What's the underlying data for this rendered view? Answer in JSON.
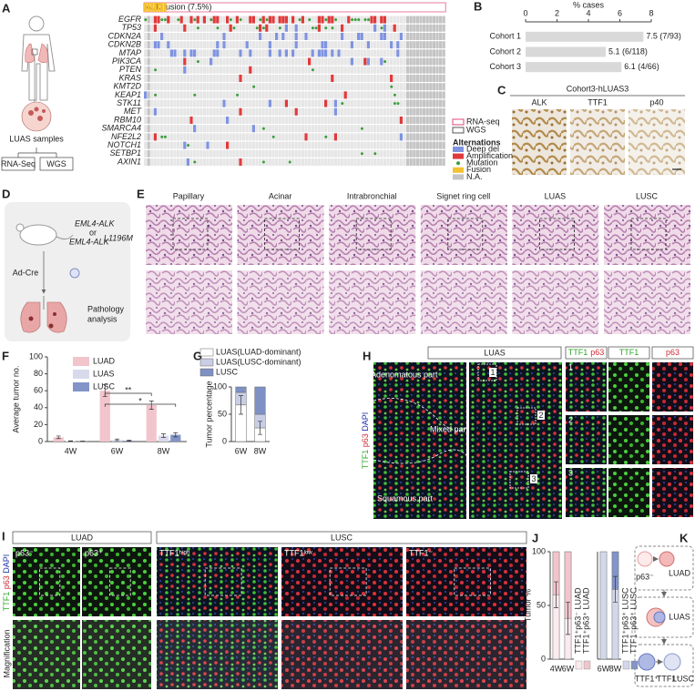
{
  "panel_labels": [
    "A",
    "B",
    "C",
    "D",
    "E",
    "F",
    "G",
    "H",
    "I",
    "J",
    "K"
  ],
  "panel_a": {
    "fusion_label": "ALK fusion (7.5%)",
    "genes": [
      "EGFR",
      "TP53",
      "CDKN2A",
      "CDKN2B",
      "MTAP",
      "PIK3CA",
      "PTEN",
      "KRAS",
      "KMT2D",
      "KEAP1",
      "STK11",
      "MET",
      "RBM10",
      "SMARCA4",
      "NFE2L2",
      "NOTCH1",
      "SETBP1",
      "AXIN1"
    ],
    "samples_label": "LUAS samples",
    "assays": [
      "RNA-Seq",
      "WGS"
    ],
    "data_legend": [
      {
        "name": "RNA-seq",
        "color": "#e0457b"
      },
      {
        "name": "WGS",
        "color": "#555555"
      }
    ],
    "legend_title": "Alternations",
    "legend_items": [
      {
        "name": "Deep del",
        "color": "#7f93e0"
      },
      {
        "name": "Amplification",
        "color": "#e0393b"
      },
      {
        "name": "Mutation",
        "color": "#3c9e3c"
      },
      {
        "name": "Fusion",
        "color": "#f4c132"
      },
      {
        "name": "N.A.",
        "color": "#c4c4c4"
      }
    ]
  },
  "panel_c": {
    "title": "Cohort3-hLUAS3",
    "stains": [
      "ALK",
      "TTF1",
      "p40"
    ]
  },
  "panel_d": {
    "model_a": "EML4-ALK",
    "or": "or",
    "model_b": "EML4-ALK",
    "model_b_sup": "L1196M",
    "virus": "Ad-Cre",
    "readout": [
      "Pathology",
      "analysis"
    ]
  },
  "panel_e": {
    "columns": [
      "Papillary",
      "Acinar",
      "Intrabronchial",
      "Signet ring cell",
      "LUAS",
      "LUSC"
    ]
  },
  "panel_h": {
    "title": "LUAS",
    "channels": [
      "TTF1",
      "p63",
      "DAPI"
    ],
    "regions": [
      "Adenomatous part",
      "Mixed part",
      "Squamous part"
    ],
    "insets": [
      "1",
      "2",
      "3"
    ],
    "inset_columns": [
      [
        "TTF1",
        "p63"
      ],
      [
        "TTF1"
      ],
      [
        "p63"
      ]
    ]
  },
  "panel_i": {
    "groups": [
      "LUAD",
      "LUSC"
    ],
    "columns": [
      "p63⁻",
      "p63⁺",
      "TTF1ʰⁱᵍʰ",
      "TTF1ˡᵒʷ",
      "TTF1⁻"
    ],
    "channels": [
      "TTF1",
      "p63",
      "DAPI"
    ],
    "row_label": "Magnification"
  },
  "panel_k": {
    "stages": [
      "LUAD",
      "LUAS",
      "LUSC"
    ],
    "cell_labels": [
      "p63⁻",
      "TTF1⁺",
      "TTF1⁻"
    ]
  },
  "chart_data": [
    {
      "type": "bar",
      "orientation": "horizontal",
      "title": "% cases",
      "categories": [
        "Cohort 1",
        "Cohort 2",
        "Cohort 3"
      ],
      "values": [
        7.5,
        5.1,
        6.1
      ],
      "value_labels": [
        "7.5 (7/93)",
        "5.1 (6/118)",
        "6.1 (4/66)"
      ],
      "color": "#d9d9d9",
      "xlim": [
        0,
        8
      ],
      "xticks": [
        0,
        2,
        4,
        6,
        8
      ]
    },
    {
      "type": "bar",
      "ylabel": "Average tumor no.",
      "categories": [
        "4W",
        "6W",
        "8W"
      ],
      "legend": "top-right",
      "series": [
        {
          "name": "LUAD",
          "color": "#f2c4cc",
          "values": [
            5,
            60,
            43
          ],
          "errors": [
            1.5,
            7,
            5
          ]
        },
        {
          "name": "LUAS",
          "color": "#d8daec",
          "values": [
            0.5,
            2,
            7
          ],
          "errors": [
            0.3,
            1,
            2
          ]
        },
        {
          "name": "LUSC",
          "color": "#8294c8",
          "values": [
            0.3,
            1,
            8
          ],
          "errors": [
            0.2,
            0.5,
            2.5
          ]
        }
      ],
      "annotations": [
        "**",
        "*"
      ],
      "ylim": [
        0,
        100
      ],
      "yticks": [
        0,
        20,
        40,
        60,
        80,
        100
      ]
    },
    {
      "type": "stacked_bar",
      "ylabel": "Tumor percentage",
      "categories": [
        "6W",
        "8W"
      ],
      "legend": "top",
      "series": [
        {
          "name": "LUAS(LUAD-dominant)",
          "color": "#ffffff",
          "values": [
            67,
            25
          ],
          "errors": [
            17,
            12
          ]
        },
        {
          "name": "LUAS(LUSC-dominant)",
          "color": "#c9cee5",
          "values": [
            23,
            25
          ]
        },
        {
          "name": "LUSC",
          "color": "#7f90c5",
          "values": [
            10,
            50
          ]
        }
      ],
      "ylim": [
        0,
        100
      ],
      "yticks": [
        0,
        50,
        100
      ]
    },
    {
      "type": "stacked_bar",
      "ylabel": "Tumor %",
      "categories": [
        "4W",
        "6W"
      ],
      "legend": "right",
      "series": [
        {
          "name": "TTF1⁺p63⁻ LUAD",
          "color": "#fbeaee",
          "values": [
            60,
            38
          ],
          "errors": [
            12,
            15
          ]
        },
        {
          "name": "TTF1⁺p63⁺ LUAD",
          "color": "#f2c4cc",
          "values": [
            40,
            62
          ]
        }
      ],
      "ylim": [
        0,
        100
      ],
      "yticks": [
        0,
        50,
        100
      ]
    },
    {
      "type": "stacked_bar",
      "categories": [
        "6W",
        "8W"
      ],
      "legend": "right",
      "series": [
        {
          "name": "TTF1⁺p63⁺ LUSC",
          "color": "#d3d7ea",
          "values": [
            100,
            65
          ],
          "errors": [
            null,
            12
          ]
        },
        {
          "name": "TTF1⁻p63⁺ LUSC",
          "color": "#8294c8",
          "values": [
            0,
            35
          ]
        }
      ],
      "ylim": [
        0,
        100
      ]
    }
  ]
}
